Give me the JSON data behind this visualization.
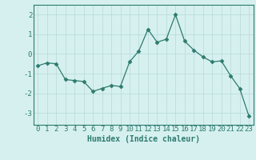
{
  "x": [
    0,
    1,
    2,
    3,
    4,
    5,
    6,
    7,
    8,
    9,
    10,
    11,
    12,
    13,
    14,
    15,
    16,
    17,
    18,
    19,
    20,
    21,
    22,
    23
  ],
  "y": [
    -0.6,
    -0.45,
    -0.5,
    -1.3,
    -1.35,
    -1.4,
    -1.9,
    -1.75,
    -1.6,
    -1.65,
    -0.4,
    0.15,
    1.25,
    0.6,
    0.75,
    2.0,
    0.65,
    0.2,
    -0.15,
    -0.4,
    -0.35,
    -1.1,
    -1.75,
    -3.15
  ],
  "line_color": "#2e7b6e",
  "marker": "D",
  "marker_size": 2.5,
  "bg_color": "#d6f0f0",
  "grid_color": "#b8d8d8",
  "axis_color": "#2e7b6e",
  "xlabel": "Humidex (Indice chaleur)",
  "xlabel_fontsize": 7,
  "tick_fontsize": 6.5,
  "ylim": [
    -3.6,
    2.5
  ],
  "xlim": [
    -0.5,
    23.5
  ],
  "yticks": [
    -3,
    -2,
    -1,
    0,
    1,
    2
  ],
  "xticks": [
    0,
    1,
    2,
    3,
    4,
    5,
    6,
    7,
    8,
    9,
    10,
    11,
    12,
    13,
    14,
    15,
    16,
    17,
    18,
    19,
    20,
    21,
    22,
    23
  ]
}
